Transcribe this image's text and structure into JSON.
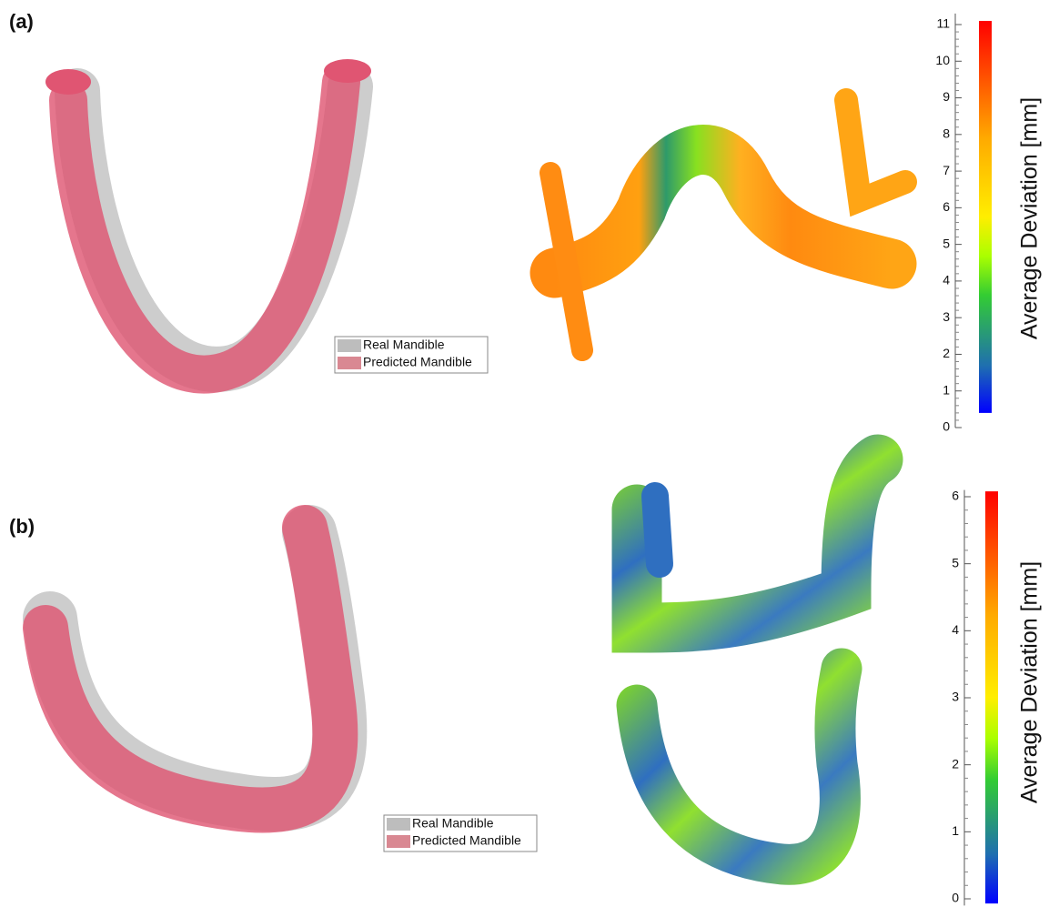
{
  "panels": [
    {
      "label": "(a)",
      "legend": [
        {
          "name": "Real Mandible",
          "color": "#bdbdbd"
        },
        {
          "name": "Predicted Mandible",
          "color": "#d98892"
        }
      ],
      "colorbar": {
        "title": "Average Deviation [mm]",
        "ylim": [
          0,
          11.3
        ],
        "yticks": [
          0,
          1,
          2,
          3,
          4,
          5,
          6,
          7,
          8,
          9,
          10,
          11
        ],
        "color_range": [
          0.4,
          11.1
        ]
      }
    },
    {
      "label": "(b)",
      "legend": [
        {
          "name": "Real Mandible",
          "color": "#bdbdbd"
        },
        {
          "name": "Predicted Mandible",
          "color": "#d98892"
        }
      ],
      "colorbar": {
        "title": "Average Deviation [mm]",
        "ylim": [
          -0.1,
          6.1
        ],
        "yticks": [
          0,
          1,
          2,
          3,
          4,
          5,
          6
        ],
        "color_range": [
          -0.07,
          6.08
        ]
      }
    }
  ]
}
